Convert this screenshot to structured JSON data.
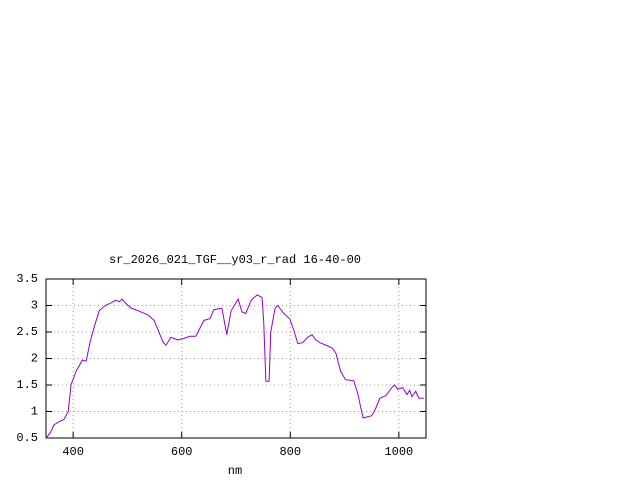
{
  "chart_data": {
    "type": "line",
    "title": "sr_2026_021_TGF__y03_r_rad 16-40-00",
    "x_label": "nm",
    "x": [
      350,
      358,
      365,
      376,
      383,
      391,
      396,
      405,
      417,
      424,
      431,
      439,
      448,
      459,
      470,
      479,
      485,
      490,
      496,
      507,
      520,
      538,
      549,
      556,
      566,
      571,
      580,
      593,
      604,
      615,
      626,
      635,
      641,
      652,
      659,
      674,
      683,
      691,
      704,
      711,
      718,
      728,
      739,
      748,
      751,
      755,
      761,
      764,
      772,
      777,
      788,
      799,
      806,
      814,
      823,
      832,
      840,
      847,
      854,
      866,
      877,
      884,
      893,
      902,
      917,
      924,
      934,
      943,
      950,
      957,
      965,
      976,
      987,
      992,
      998,
      1007,
      1015,
      1020,
      1024,
      1031,
      1037,
      1046
    ],
    "values": [
      0.5,
      0.6,
      0.75,
      0.82,
      0.85,
      1.0,
      1.5,
      1.75,
      1.97,
      1.95,
      2.3,
      2.6,
      2.9,
      3.0,
      3.05,
      3.1,
      3.07,
      3.12,
      3.05,
      2.95,
      2.9,
      2.82,
      2.72,
      2.55,
      2.3,
      2.25,
      2.4,
      2.35,
      2.38,
      2.42,
      2.42,
      2.6,
      2.72,
      2.75,
      2.92,
      2.95,
      2.45,
      2.9,
      3.12,
      2.88,
      2.85,
      3.1,
      3.2,
      3.15,
      2.7,
      1.57,
      1.57,
      2.5,
      2.95,
      3.0,
      2.85,
      2.75,
      2.55,
      2.28,
      2.3,
      2.4,
      2.45,
      2.35,
      2.3,
      2.25,
      2.2,
      2.1,
      1.75,
      1.6,
      1.58,
      1.35,
      0.88,
      0.9,
      0.92,
      1.05,
      1.25,
      1.3,
      1.45,
      1.5,
      1.42,
      1.45,
      1.32,
      1.4,
      1.28,
      1.38,
      1.25,
      1.25
    ],
    "color": "#9400d3",
    "xlim": [
      350,
      1050
    ],
    "xticks": [
      400,
      600,
      800,
      1000
    ],
    "ylim": [
      0.5,
      3.5
    ],
    "yticks": [
      0.5,
      1,
      1.5,
      2,
      2.5,
      3,
      3.5
    ],
    "grid": true
  }
}
